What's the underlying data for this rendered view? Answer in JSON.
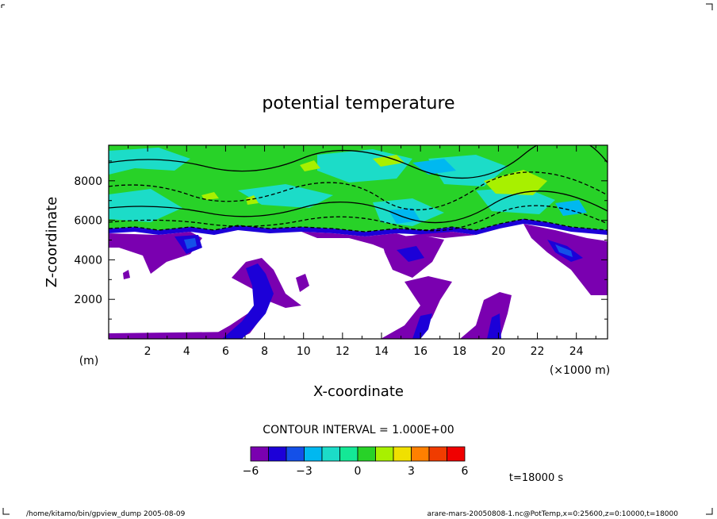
{
  "chart_data": {
    "type": "contour",
    "title": "potential temperature",
    "xlabel": "X-coordinate",
    "ylabel": "Z-coordinate",
    "x_unit": "(×1000 m)",
    "y_unit": "(m)",
    "x_ticks": [
      2,
      4,
      6,
      8,
      10,
      12,
      14,
      16,
      18,
      20,
      22,
      24
    ],
    "y_ticks": [
      2000,
      4000,
      6000,
      8000
    ],
    "xlim": [
      0,
      25.6
    ],
    "ylim": [
      0,
      9800
    ],
    "contour_interval_text": "CONTOUR INTERVAL = 1.000E+00",
    "colorbar": {
      "levels": [
        -6,
        -5,
        -4,
        -3,
        -2,
        -1,
        0,
        1,
        2,
        3,
        4,
        5,
        6
      ],
      "labels": [
        -6,
        -3,
        0,
        3,
        6
      ],
      "colors": [
        "#7a00b0",
        "#1c00d8",
        "#1450e8",
        "#00b8f0",
        "#1cdcc8",
        "#14e896",
        "#28d228",
        "#a8f000",
        "#f0e000",
        "#ff8000",
        "#f03c00",
        "#f00000",
        "#f08c8c"
      ]
    },
    "time_label": "t=18000 s"
  },
  "footer": {
    "left": "/home/kitamo/bin/gpview_dump  2005-08-09",
    "right": "arare-mars-20050808-1.nc@PotTemp,x=0:25600,z=0:10000,t=18000"
  }
}
